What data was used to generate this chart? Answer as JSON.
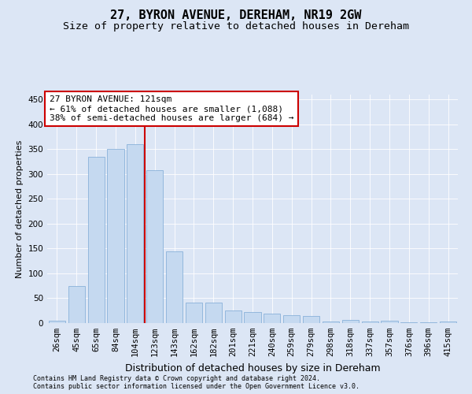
{
  "title": "27, BYRON AVENUE, DEREHAM, NR19 2GW",
  "subtitle": "Size of property relative to detached houses in Dereham",
  "xlabel": "Distribution of detached houses by size in Dereham",
  "ylabel": "Number of detached properties",
  "categories": [
    "26sqm",
    "45sqm",
    "65sqm",
    "84sqm",
    "104sqm",
    "123sqm",
    "143sqm",
    "162sqm",
    "182sqm",
    "201sqm",
    "221sqm",
    "240sqm",
    "259sqm",
    "279sqm",
    "298sqm",
    "318sqm",
    "337sqm",
    "357sqm",
    "376sqm",
    "396sqm",
    "415sqm"
  ],
  "values": [
    5,
    75,
    335,
    350,
    360,
    308,
    145,
    42,
    42,
    25,
    22,
    19,
    16,
    14,
    3,
    7,
    3,
    4,
    1,
    1,
    3
  ],
  "bar_color": "#c5d9f0",
  "bar_edge_color": "#7ba7d4",
  "vline_color": "#cc0000",
  "vline_pos": 4.5,
  "annotation_text": "27 BYRON AVENUE: 121sqm\n← 61% of detached houses are smaller (1,088)\n38% of semi-detached houses are larger (684) →",
  "annotation_box_facecolor": "#ffffff",
  "annotation_box_edgecolor": "#cc0000",
  "footnote1": "Contains HM Land Registry data © Crown copyright and database right 2024.",
  "footnote2": "Contains public sector information licensed under the Open Government Licence v3.0.",
  "fig_facecolor": "#dce6f5",
  "axes_facecolor": "#dce6f5",
  "grid_color": "#ffffff",
  "ylim": [
    0,
    460
  ],
  "yticks": [
    0,
    50,
    100,
    150,
    200,
    250,
    300,
    350,
    400,
    450
  ],
  "title_fontsize": 11,
  "subtitle_fontsize": 9.5,
  "ylabel_fontsize": 8,
  "xlabel_fontsize": 9,
  "tick_fontsize": 7.5,
  "annotation_fontsize": 8,
  "footnote_fontsize": 6
}
